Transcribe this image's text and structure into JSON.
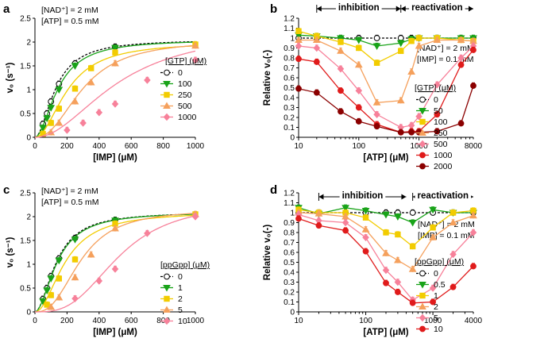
{
  "chart_data": [
    {
      "panel": "a",
      "type": "scatter",
      "xlabel": "[IMP] (μM)",
      "ylabel": "v₀ (s⁻¹)",
      "xlim": [
        0,
        1000
      ],
      "ylim": [
        0,
        2.5
      ],
      "xticks": [
        0,
        200,
        400,
        600,
        800,
        1000
      ],
      "yticks": [
        0,
        0.5,
        1,
        1.5,
        2,
        2.5
      ],
      "annotations": [
        "[NAD⁺] = 2 mM",
        "[ATP] = 0.5 mM"
      ],
      "legend_title": "[GTP] (μM)",
      "series": [
        {
          "name": "0",
          "color": "#000000",
          "marker": "circle",
          "open": true,
          "dashed": true,
          "vmax": 2.05,
          "k": 130,
          "n": 1.9,
          "x": [
            50,
            75,
            100,
            150,
            250,
            500
          ],
          "y": [
            0.28,
            0.5,
            0.75,
            1.12,
            1.55,
            1.9
          ]
        },
        {
          "name": "100",
          "color": "#19a319",
          "marker": "triangle-down",
          "vmax": 2.05,
          "k": 145,
          "n": 1.9,
          "x": [
            50,
            75,
            100,
            150,
            250,
            500
          ],
          "y": [
            0.2,
            0.4,
            0.62,
            1.0,
            1.5,
            1.88
          ]
        },
        {
          "name": "250",
          "color": "#f2cc00",
          "marker": "square",
          "vmax": 2.0,
          "k": 205,
          "n": 2.0,
          "x": [
            50,
            100,
            150,
            250,
            350,
            500,
            1000
          ],
          "y": [
            0.07,
            0.3,
            0.6,
            1.02,
            1.45,
            1.78,
            1.95
          ]
        },
        {
          "name": "500",
          "color": "#f5a05c",
          "marker": "triangle-up",
          "vmax": 2.05,
          "k": 300,
          "n": 2.3,
          "x": [
            100,
            150,
            250,
            350,
            500,
            1000
          ],
          "y": [
            0.1,
            0.3,
            0.75,
            1.15,
            1.55,
            1.92
          ]
        },
        {
          "name": "1000",
          "color": "#f7819a",
          "marker": "diamond",
          "vmax": 2.3,
          "k": 520,
          "n": 2.0,
          "x": [
            200,
            300,
            400,
            500,
            700,
            1000
          ],
          "y": [
            0.15,
            0.3,
            0.52,
            0.7,
            1.2,
            1.62
          ]
        }
      ]
    },
    {
      "panel": "b",
      "type": "line",
      "xscale": "log",
      "xlabel": "[ATP] (μM)",
      "ylabel": "Relative v₀(-)",
      "xlim": [
        10,
        8000
      ],
      "ylim": [
        0,
        1.2
      ],
      "xticks": [
        10,
        100,
        1000,
        8000
      ],
      "xtick_labels": [
        "10",
        "100",
        "1000",
        "8000"
      ],
      "yticks": [
        0,
        0.1,
        0.2,
        0.3,
        0.4,
        0.5,
        0.6,
        0.7,
        0.8,
        0.9,
        1,
        1.1,
        1.2
      ],
      "ytick_labels": [
        "0",
        "0.1",
        "0.2",
        "0.3",
        "0.4",
        "0.5",
        "0.6",
        "0.7",
        "0.8",
        "0.9",
        "1",
        "1.1",
        "1.2"
      ],
      "regions": [
        {
          "label": "inhibition",
          "from": 20,
          "to": 500
        },
        {
          "label": "reactivation",
          "from": 500,
          "to": 8000
        }
      ],
      "annotations": [
        "[NAD⁺] = 2 mM",
        "[IMP] = 0.1 mM"
      ],
      "legend_title": "[GTP] (μM)",
      "series": [
        {
          "name": "0",
          "color": "#000000",
          "marker": "circle",
          "open": true,
          "dashed": true,
          "x": [
            10,
            20,
            50,
            100,
            200,
            500,
            750,
            1000,
            2000,
            5000,
            8000
          ],
          "y": [
            1.0,
            1.0,
            1.0,
            1.0,
            1.0,
            1.0,
            1.0,
            1.0,
            1.0,
            1.0,
            1.0
          ]
        },
        {
          "name": "50",
          "color": "#19a319",
          "marker": "triangle-down",
          "x": [
            10,
            20,
            50,
            100,
            200,
            500,
            750,
            1000,
            2000,
            5000,
            8000
          ],
          "y": [
            1.03,
            1.02,
            1.0,
            0.98,
            0.92,
            0.95,
            0.99,
            1.0,
            1.0,
            1.0,
            1.0
          ]
        },
        {
          "name": "100",
          "color": "#f2cc00",
          "marker": "square",
          "x": [
            10,
            20,
            50,
            100,
            200,
            500,
            750,
            1000,
            2000,
            5000,
            8000
          ],
          "y": [
            1.07,
            1.02,
            0.96,
            0.9,
            0.75,
            0.87,
            0.97,
            1.0,
            1.0,
            0.98,
            0.97
          ]
        },
        {
          "name": "250",
          "color": "#f5a05c",
          "marker": "triangle-up",
          "x": [
            10,
            20,
            50,
            100,
            200,
            500,
            750,
            1000,
            2000,
            5000,
            8000
          ],
          "y": [
            0.98,
            0.98,
            0.87,
            0.73,
            0.35,
            0.37,
            0.66,
            0.92,
            0.98,
            0.98,
            0.97
          ]
        },
        {
          "name": "500",
          "color": "#f7819a",
          "marker": "diamond",
          "x": [
            10,
            20,
            50,
            100,
            200,
            500,
            750,
            1000,
            2000,
            5000,
            8000
          ],
          "y": [
            0.92,
            0.9,
            0.69,
            0.47,
            0.23,
            0.1,
            0.12,
            0.21,
            0.53,
            0.8,
            0.92
          ]
        },
        {
          "name": "1000",
          "color": "#e01b1b",
          "marker": "circle",
          "x": [
            10,
            20,
            50,
            100,
            200,
            500,
            750,
            1000,
            2000,
            5000,
            8000
          ],
          "y": [
            0.79,
            0.76,
            0.47,
            0.3,
            0.13,
            0.05,
            0.06,
            0.06,
            0.23,
            0.73,
            0.88
          ]
        },
        {
          "name": "2000",
          "color": "#8b0000",
          "marker": "circle",
          "x": [
            10,
            20,
            50,
            100,
            200,
            500,
            750,
            1000,
            2000,
            5000,
            8000
          ],
          "y": [
            0.49,
            0.45,
            0.26,
            0.16,
            0.11,
            0.05,
            0.05,
            0.05,
            0.06,
            0.14,
            0.52
          ]
        }
      ]
    },
    {
      "panel": "c",
      "type": "scatter",
      "xlabel": "[IMP] (μM)",
      "ylabel": "v₀ (s⁻¹)",
      "xlim": [
        0,
        1000
      ],
      "ylim": [
        0,
        2.5
      ],
      "xticks": [
        0,
        200,
        400,
        600,
        800,
        1000
      ],
      "yticks": [
        0,
        0.5,
        1,
        1.5,
        2,
        2.5
      ],
      "annotations": [
        "[NAD⁺] = 2 mM",
        "[ATP] = 0.5 mM"
      ],
      "legend_title": "[ppGpp] (μM)",
      "series": [
        {
          "name": "0",
          "color": "#000000",
          "marker": "circle",
          "open": true,
          "dashed": true,
          "vmax": 2.1,
          "k": 135,
          "n": 1.9,
          "x": [
            50,
            75,
            100,
            150,
            250,
            500
          ],
          "y": [
            0.27,
            0.5,
            0.75,
            1.12,
            1.55,
            1.93
          ]
        },
        {
          "name": "1",
          "color": "#19a319",
          "marker": "triangle-down",
          "vmax": 2.1,
          "k": 140,
          "n": 1.9,
          "x": [
            50,
            75,
            100,
            150,
            250,
            500
          ],
          "y": [
            0.22,
            0.45,
            0.7,
            1.08,
            1.52,
            1.92
          ]
        },
        {
          "name": "2",
          "color": "#f2cc00",
          "marker": "square",
          "vmax": 2.1,
          "k": 190,
          "n": 2.0,
          "x": [
            75,
            100,
            150,
            250,
            500,
            1000
          ],
          "y": [
            0.15,
            0.35,
            0.7,
            1.1,
            1.85,
            2.05
          ]
        },
        {
          "name": "5",
          "color": "#f5a05c",
          "marker": "triangle-up",
          "vmax": 2.15,
          "k": 285,
          "n": 2.6,
          "x": [
            100,
            150,
            250,
            350,
            500,
            1000
          ],
          "y": [
            0.1,
            0.3,
            0.72,
            1.2,
            1.75,
            2.05
          ]
        },
        {
          "name": "10",
          "color": "#f7819a",
          "marker": "diamond",
          "vmax": 2.3,
          "k": 520,
          "n": 3.0,
          "x": [
            250,
            400,
            500,
            700,
            1000
          ],
          "y": [
            0.28,
            0.65,
            0.9,
            1.65,
            2.0
          ]
        }
      ]
    },
    {
      "panel": "d",
      "type": "line",
      "xscale": "log",
      "xlabel": "[ATP] (μM)",
      "ylabel": "Relative v₀(-)",
      "xlim": [
        10,
        4000
      ],
      "ylim": [
        0,
        1.2
      ],
      "xticks": [
        10,
        100,
        1000,
        4000
      ],
      "xtick_labels": [
        "10",
        "100",
        "1000",
        "4000"
      ],
      "yticks": [
        0,
        0.1,
        0.2,
        0.3,
        0.4,
        0.5,
        0.6,
        0.7,
        0.8,
        0.9,
        1,
        1.1,
        1.2
      ],
      "ytick_labels": [
        "0",
        "0.1",
        "0.2",
        "0.3",
        "0.4",
        "0.5",
        "0.6",
        "0.7",
        "0.8",
        "0.9",
        "1",
        "1.1",
        "1.2"
      ],
      "regions": [
        {
          "label": "inhibition",
          "from": 20,
          "to": 400
        },
        {
          "label": "reactivation",
          "from": 500,
          "to": 4000
        }
      ],
      "annotations": [
        "[NAD⁺] = 2 mM",
        "[IMP] = 0.1 mM"
      ],
      "legend_title": "[ppGpp] (μM)",
      "series": [
        {
          "name": "0",
          "color": "#000000",
          "marker": "circle",
          "open": true,
          "dashed": true,
          "x": [
            10,
            20,
            50,
            100,
            200,
            300,
            500,
            1000,
            2000,
            4000
          ],
          "y": [
            1.0,
            1.0,
            1.0,
            1.0,
            1.0,
            1.0,
            1.0,
            1.0,
            1.0,
            1.0
          ]
        },
        {
          "name": "0.5",
          "color": "#19a319",
          "marker": "triangle-down",
          "x": [
            10,
            20,
            50,
            100,
            200,
            300,
            500,
            1000,
            2000,
            4000
          ],
          "y": [
            1.05,
            0.99,
            1.05,
            1.02,
            0.98,
            0.96,
            0.9,
            1.03,
            1.0,
            1.0
          ]
        },
        {
          "name": "1",
          "color": "#f2cc00",
          "marker": "square",
          "x": [
            10,
            20,
            50,
            100,
            200,
            300,
            500,
            1000,
            2000,
            4000
          ],
          "y": [
            1.03,
            1.0,
            1.0,
            0.95,
            0.8,
            0.78,
            0.66,
            0.85,
            1.0,
            1.02
          ]
        },
        {
          "name": "2",
          "color": "#f5a05c",
          "marker": "triangle-up",
          "x": [
            10,
            20,
            50,
            100,
            200,
            300,
            500,
            1000,
            2000,
            4000
          ],
          "y": [
            1.0,
            0.99,
            0.96,
            0.83,
            0.59,
            0.52,
            0.43,
            0.75,
            0.9,
            0.97
          ]
        },
        {
          "name": "5",
          "color": "#f7819a",
          "marker": "diamond",
          "x": [
            10,
            20,
            50,
            100,
            200,
            300,
            500,
            1000,
            2000,
            4000
          ],
          "y": [
            0.98,
            0.92,
            0.9,
            0.75,
            0.42,
            0.3,
            0.12,
            0.24,
            0.58,
            0.8
          ]
        },
        {
          "name": "10",
          "color": "#e01b1b",
          "marker": "circle",
          "x": [
            10,
            20,
            50,
            100,
            200,
            300,
            500,
            1000,
            2000,
            4000
          ],
          "y": [
            0.94,
            0.87,
            0.82,
            0.61,
            0.29,
            0.2,
            0.09,
            0.1,
            0.25,
            0.46
          ]
        }
      ]
    }
  ]
}
